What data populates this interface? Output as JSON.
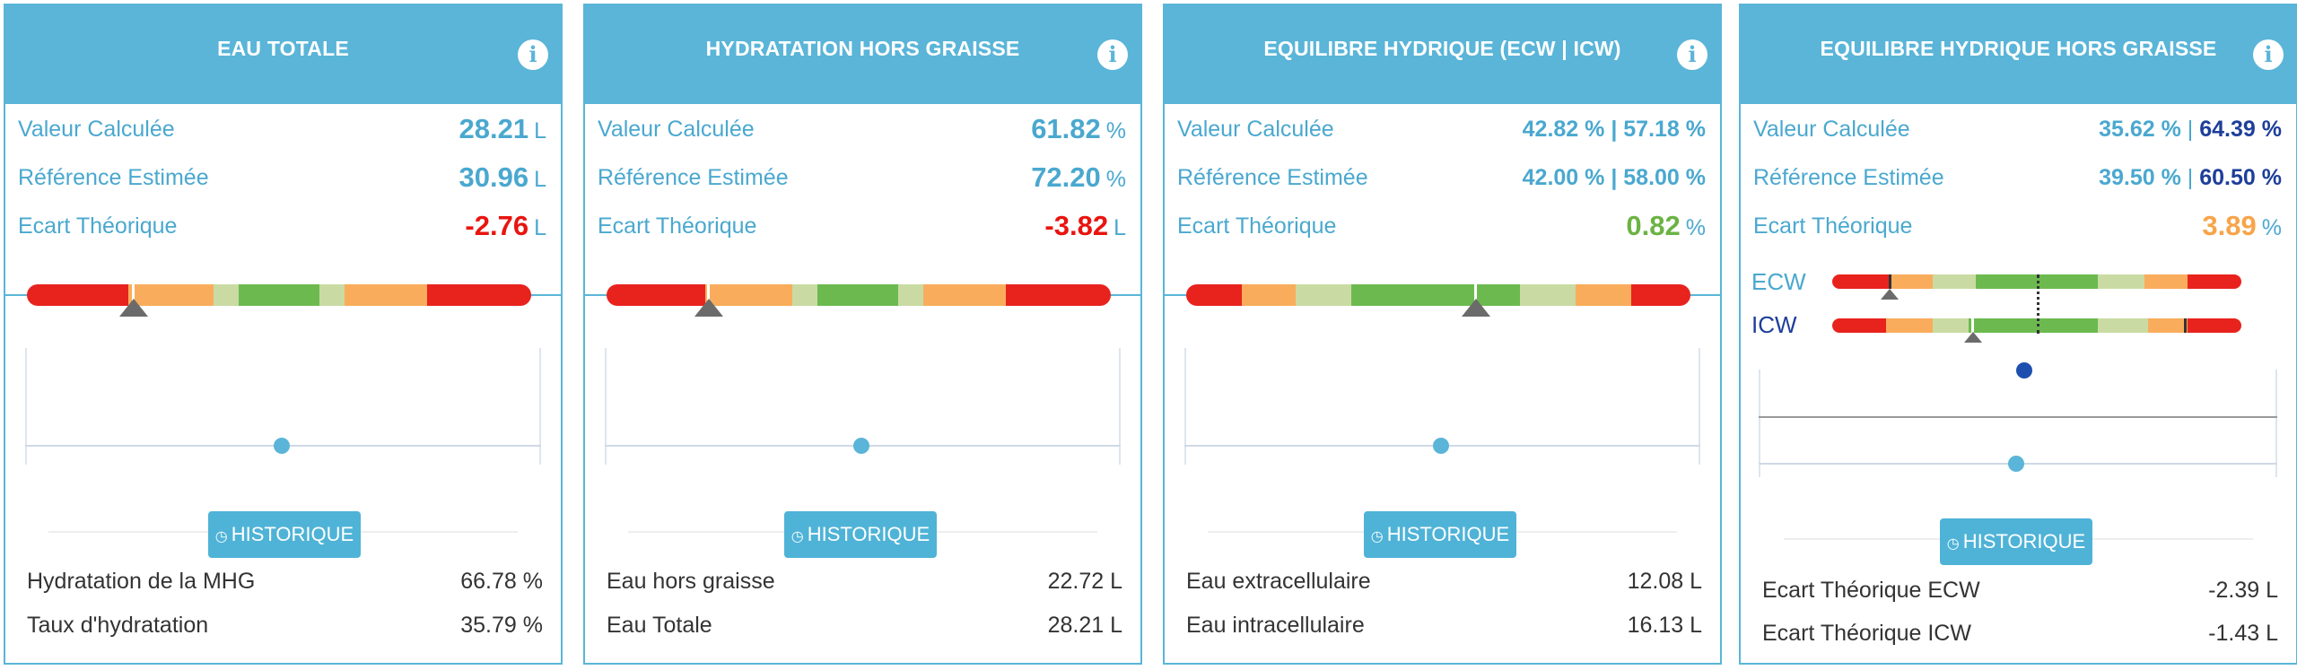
{
  "cards": [
    {
      "title": "EAU TOTALE",
      "rows": [
        {
          "label": "Valeur Calculée",
          "value": "28.21",
          "unit": "L"
        },
        {
          "label": "Référence Estimée",
          "value": "30.96",
          "unit": "L"
        },
        {
          "label": "Ecart Théorique",
          "value": "-2.76",
          "unit": "L",
          "color": "#e8140f"
        }
      ],
      "button": "HISTORIQUE",
      "footer": [
        {
          "label": "Hydratation de la MHG",
          "value": "66.78 %"
        },
        {
          "label": "Taux d'hydratation",
          "value": "35.79 %"
        }
      ]
    },
    {
      "title": "HYDRATATION HORS GRAISSE",
      "rows": [
        {
          "label": "Valeur Calculée",
          "value": "61.82",
          "unit": "%"
        },
        {
          "label": "Référence Estimée",
          "value": "72.20",
          "unit": "%"
        },
        {
          "label": "Ecart Théorique",
          "value": "-3.82",
          "unit": "L",
          "color": "#e8140f"
        }
      ],
      "button": "HISTORIQUE",
      "footer": [
        {
          "label": "Eau hors graisse",
          "value": "22.72 L"
        },
        {
          "label": "Eau Totale",
          "value": "28.21 L"
        }
      ]
    },
    {
      "title": "EQUILIBRE HYDRIQUE (ECW | ICW)",
      "rows": [
        {
          "label": "Valeur Calculée",
          "value": "42.82 % | 57.18 %"
        },
        {
          "label": "Référence Estimée",
          "value": "42.00 % | 58.00 %"
        },
        {
          "label": "Ecart Théorique",
          "value": "0.82",
          "unit": "%",
          "color": "#6bb344"
        }
      ],
      "button": "HISTORIQUE",
      "footer": [
        {
          "label": "Eau extracellulaire",
          "value": "12.08 L"
        },
        {
          "label": "Eau intracellulaire",
          "value": "16.13 L"
        }
      ]
    },
    {
      "title": "EQUILIBRE HYDRIQUE HORS GRAISSE",
      "rows": [
        {
          "label": "Valeur Calculée",
          "value_a": "35.62 %",
          "sep": "|",
          "value_b": "64.39 %"
        },
        {
          "label": "Référence Estimée",
          "value_a": "39.50 %",
          "sep": "|",
          "value_b": "60.50 %"
        },
        {
          "label": "Ecart Théorique",
          "value": "3.89",
          "unit": "%",
          "color": "#f7a44a"
        }
      ],
      "gauge_labels": {
        "ecw": "ECW",
        "icw": "ICW"
      },
      "button": "HISTORIQUE",
      "footer": [
        {
          "label": "Ecart Théorique ECW",
          "value": "-2.39 L"
        },
        {
          "label": "Ecart Théorique ICW",
          "value": "-1.43 L"
        }
      ]
    }
  ],
  "icons": {
    "info": "info-icon",
    "history": "history-icon"
  },
  "colors": {
    "accent": "#5ab5d8",
    "red": "#e8231e",
    "orange": "#f9ad5c",
    "light_green": "#c9dba3",
    "green": "#6cba4f",
    "navy": "#1d3e9a"
  }
}
